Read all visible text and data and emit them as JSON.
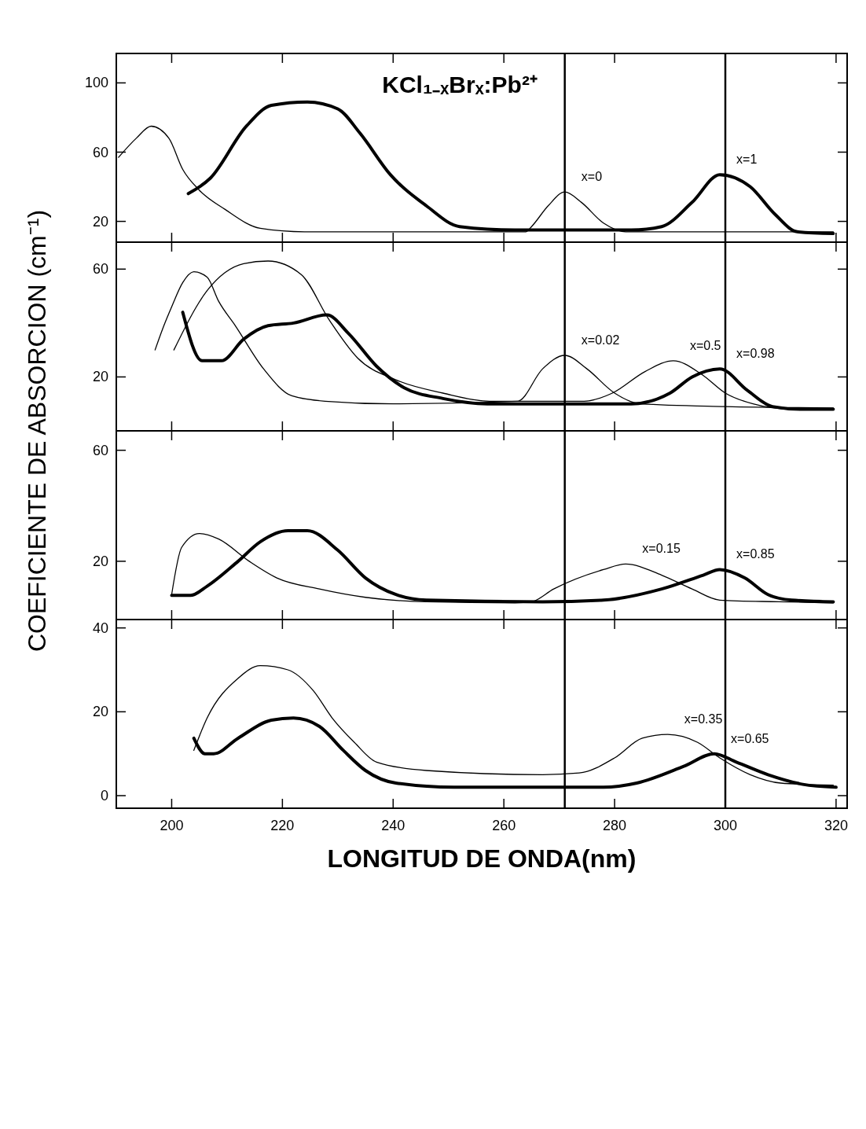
{
  "chart_data": [
    {
      "type": "line",
      "ylabel": "COEFICIENTE DE ABSORCION (cm⁻¹)",
      "annotations": [
        "KCl₁₋ₓBrₓ:Pb²⁺"
      ],
      "xlim": [
        190,
        322
      ],
      "xticks": [
        200,
        220,
        240,
        260,
        280,
        300,
        320
      ],
      "ylim": [
        8,
        117
      ],
      "yticks": [
        20,
        60,
        100
      ],
      "tick_labels": "y",
      "ref_lines": [
        {
          "axis": "x",
          "value": 271,
          "color": "#000000"
        },
        {
          "axis": "x",
          "value": 300,
          "color": "#000000"
        }
      ],
      "series": [
        {
          "name": "x=0",
          "color": "#000000",
          "x": [
            190.4,
            193.6,
            196.3,
            199.5,
            202,
            205,
            209.6,
            216,
            224,
            240,
            264,
            265,
            268,
            271,
            274,
            278,
            282,
            300,
            319.5
          ],
          "values": [
            57,
            68,
            75,
            68,
            50,
            38,
            27,
            16,
            14,
            14,
            14,
            17,
            29,
            37,
            31,
            19,
            14,
            14,
            14
          ]
        },
        {
          "name": "x=1",
          "color": "#000000",
          "x": [
            203,
            207,
            213.5,
            218,
            224.5,
            230,
            234,
            239.5,
            246,
            252,
            262,
            283,
            288.5,
            294,
            299,
            304.5,
            309,
            313,
            319.5
          ],
          "values": [
            36,
            45,
            75,
            87,
            89,
            85,
            71,
            47,
            29,
            17,
            15,
            15,
            17,
            31,
            47,
            40,
            24,
            14,
            13
          ]
        }
      ]
    },
    {
      "type": "line",
      "xlim": [
        190,
        322
      ],
      "xticks": [
        200,
        220,
        240,
        260,
        280,
        300,
        320
      ],
      "ylim": [
        0,
        70
      ],
      "yticks": [
        20,
        60
      ],
      "tick_labels": "y",
      "ref_lines": [
        {
          "axis": "x",
          "value": 271,
          "color": "#000000"
        },
        {
          "axis": "x",
          "value": 300,
          "color": "#000000"
        }
      ],
      "series": [
        {
          "name": "x=0.02",
          "color": "#000000",
          "x": [
            197,
            198.4,
            200,
            202,
            204,
            206.4,
            208.5,
            211.5,
            216.6,
            221.7,
            227.7,
            240,
            262.5,
            267,
            271,
            275,
            280,
            284.7,
            300,
            319.5
          ],
          "values": [
            30,
            38,
            46,
            55,
            59,
            57,
            48,
            39,
            23,
            13,
            11,
            10,
            11,
            23,
            28,
            23,
            14,
            10,
            9,
            8.5
          ]
        },
        {
          "name": "x=0.5",
          "color": "#000000",
          "x": [
            200.4,
            206.4,
            213,
            217.4,
            223.4,
            228.5,
            233.6,
            240.4,
            249,
            257.4,
            274.5,
            279.6,
            285.5,
            290.6,
            295.7,
            300,
            305,
            312,
            319.5
          ],
          "values": [
            30,
            52,
            62,
            63,
            58,
            41,
            27,
            19,
            14,
            11,
            11,
            14,
            22,
            26,
            21,
            14,
            10,
            8,
            8
          ]
        },
        {
          "name": "x=0.98",
          "color": "#000000",
          "x": [
            202,
            205.5,
            209,
            213,
            217.4,
            222,
            228,
            232,
            237,
            242,
            249,
            257,
            283,
            290,
            294,
            299,
            304,
            308.5,
            313.6,
            319.5
          ],
          "values": [
            44,
            26,
            26,
            34,
            39,
            40,
            43,
            36,
            24,
            16,
            12,
            10,
            10,
            14,
            20,
            23,
            15,
            9,
            8,
            8
          ]
        }
      ]
    },
    {
      "type": "line",
      "xlim": [
        190,
        322
      ],
      "xticks": [
        200,
        220,
        240,
        260,
        280,
        300,
        320
      ],
      "ylim": [
        -1,
        67
      ],
      "yticks": [
        20,
        60
      ],
      "tick_labels": "y",
      "ref_lines": [
        {
          "axis": "x",
          "value": 271,
          "color": "#000000"
        },
        {
          "axis": "x",
          "value": 300,
          "color": "#000000"
        }
      ],
      "series": [
        {
          "name": "x=0.15",
          "color": "#000000",
          "x": [
            200,
            201.8,
            205,
            208.5,
            214,
            219,
            226.7,
            235,
            246,
            262,
            265,
            269,
            278,
            282,
            288.5,
            294,
            299,
            309.6,
            319.5
          ],
          "values": [
            8,
            25,
            30,
            28,
            20,
            14,
            10,
            7,
            5.4,
            5,
            5.4,
            10,
            17,
            19,
            15,
            10,
            6,
            5.4,
            5
          ]
        },
        {
          "name": "x=0.85",
          "color": "#000000",
          "x": [
            200,
            203.4,
            206.4,
            212,
            216,
            221,
            224.5,
            230,
            235,
            240.5,
            246,
            267,
            278,
            288.5,
            296,
            299,
            303.5,
            307.7,
            312,
            319.5
          ],
          "values": [
            7.7,
            7.7,
            11,
            20,
            27,
            31,
            31,
            24,
            14,
            8,
            6,
            5.4,
            6,
            10,
            15,
            17,
            14,
            8,
            6,
            5.4
          ]
        }
      ]
    },
    {
      "type": "line",
      "xlabel": "LONGITUD DE ONDA(nm)",
      "xlim": [
        190,
        322
      ],
      "xticks": [
        200,
        220,
        240,
        260,
        280,
        300,
        320
      ],
      "ylim": [
        -3,
        42
      ],
      "yticks": [
        0,
        20,
        40
      ],
      "ref_lines": [
        {
          "axis": "x",
          "value": 271,
          "color": "#000000"
        },
        {
          "axis": "x",
          "value": 300,
          "color": "#000000"
        }
      ],
      "series": [
        {
          "name": "x=0.35",
          "color": "#000000",
          "x": [
            204,
            206.4,
            212,
            216,
            221,
            225.6,
            229,
            233,
            237,
            246,
            267,
            273.6,
            280,
            285,
            289.6,
            295,
            299,
            304.5,
            310,
            319.5
          ],
          "values": [
            10.8,
            18.5,
            28,
            31,
            30,
            25,
            18.5,
            12.7,
            8,
            6,
            5,
            5.4,
            9,
            13.7,
            14.6,
            12.7,
            9,
            5,
            3,
            2.5
          ]
        },
        {
          "name": "x=0.65",
          "color": "#000000",
          "x": [
            204,
            206,
            207.6,
            212,
            218,
            222,
            226.7,
            231,
            235,
            240.5,
            251,
            278,
            284,
            292.5,
            298,
            302,
            307.7,
            314,
            320
          ],
          "values": [
            13.7,
            10,
            10,
            13.7,
            18,
            18.5,
            16.5,
            10.8,
            6,
            3,
            2,
            2,
            3,
            7,
            10,
            8,
            5,
            2.7,
            2
          ]
        }
      ]
    }
  ]
}
